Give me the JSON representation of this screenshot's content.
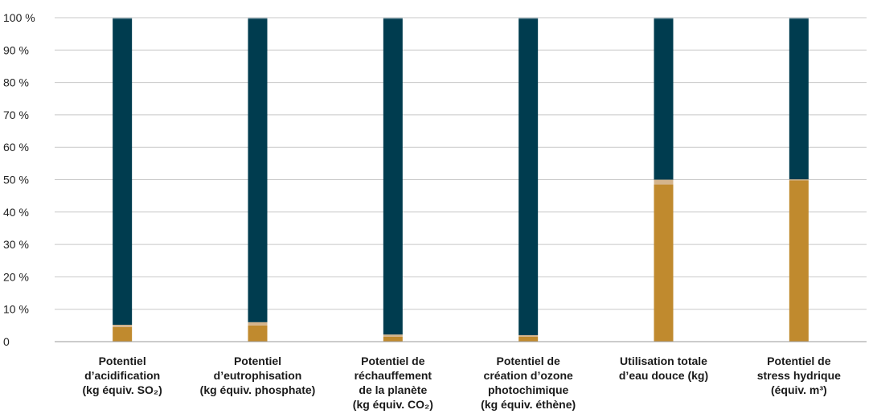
{
  "chart_data": {
    "type": "bar",
    "stacked": true,
    "normalized": true,
    "title": "",
    "xlabel": "",
    "ylabel": "",
    "ylim": [
      0,
      100
    ],
    "y_ticks": [
      "0",
      "10 %",
      "20 %",
      "30 %",
      "40 %",
      "50 %",
      "60 %",
      "70 %",
      "80 %",
      "90 %",
      "100 %"
    ],
    "grid": true,
    "legend": "none",
    "categories": [
      [
        "Potentiel",
        "d’acidification",
        "(kg équiv. SO₂)"
      ],
      [
        "Potentiel",
        "d’eutrophisation",
        "(kg équiv. phosphate)"
      ],
      [
        "Potentiel de",
        "réchauffement",
        "de la planète",
        "(kg équiv. CO₂)"
      ],
      [
        "Potentiel de",
        "création d’ozone",
        "photochimique",
        "(kg équiv. éthène)"
      ],
      [
        "Utilisation totale",
        "d’eau douce (kg)"
      ],
      [
        "Potentiel de",
        "stress hydrique",
        "(équiv. m³)"
      ]
    ],
    "series": [
      {
        "color": "#c08a2e",
        "values": [
          4.5,
          5,
          1.5,
          1.5,
          48.5,
          49.8
        ]
      },
      {
        "color": "#d4b48c",
        "values": [
          0.7,
          1,
          0.7,
          0.5,
          1.5,
          0.3
        ]
      },
      {
        "color": "#003c4f",
        "values": [
          94.5,
          93.7,
          97.5,
          97.7,
          49.7,
          49.6
        ]
      },
      {
        "color": "#8aa3ad",
        "values": [
          0.3,
          0.3,
          0.3,
          0.3,
          0.3,
          0.3
        ]
      }
    ]
  }
}
